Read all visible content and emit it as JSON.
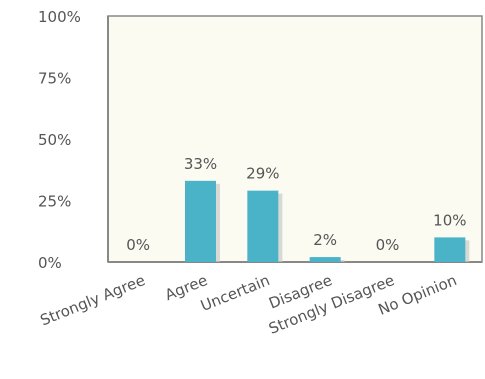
{
  "chart_data": {
    "type": "bar",
    "categories": [
      "Strongly Agree",
      "Agree",
      "Uncertain",
      "Disagree",
      "Strongly Disagree",
      "No Opinion"
    ],
    "values": [
      0,
      33,
      29,
      2,
      0,
      10
    ],
    "data_labels": [
      "0%",
      "33%",
      "29%",
      "2%",
      "0%",
      "10%"
    ],
    "title": "",
    "xlabel": "",
    "ylabel": "",
    "ylim": [
      0,
      100
    ],
    "yticks": [
      0,
      25,
      50,
      75,
      100
    ],
    "ytick_labels": [
      "0%",
      "25%",
      "50%",
      "75%",
      "100%"
    ],
    "grid": false,
    "legend": "none",
    "colors": {
      "bar": "#4ab3c8",
      "bar_shadow": "#c9c9c9",
      "plot_background": "#fbfbf2",
      "axis": "#888888",
      "text": "#555555"
    }
  }
}
